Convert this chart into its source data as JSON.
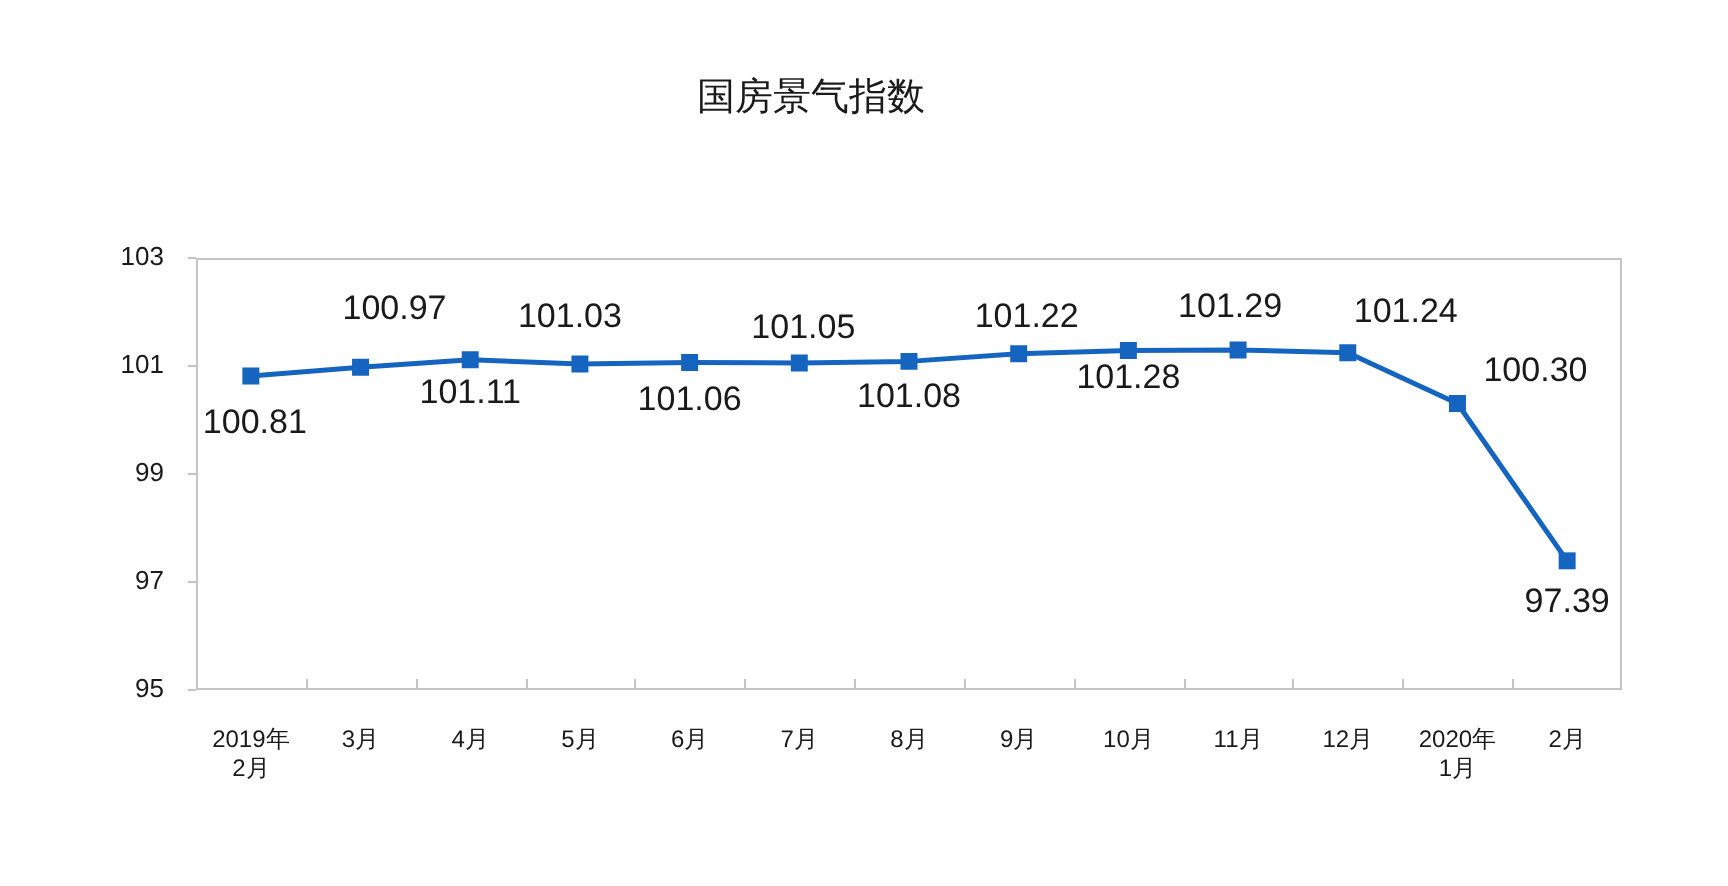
{
  "chart_data": {
    "type": "line",
    "title": "国房景气指数",
    "categories": [
      "2019年\n2月",
      "3月",
      "4月",
      "5月",
      "6月",
      "7月",
      "8月",
      "9月",
      "10月",
      "11月",
      "12月",
      "2020年\n1月",
      "2月"
    ],
    "values": [
      100.81,
      100.97,
      101.11,
      101.03,
      101.06,
      101.05,
      101.08,
      101.22,
      101.28,
      101.29,
      101.24,
      100.3,
      97.39
    ],
    "value_labels": [
      "100.81",
      "100.97",
      "101.11",
      "101.03",
      "101.06",
      "101.05",
      "101.08",
      "101.22",
      "101.28",
      "101.29",
      "101.24",
      "100.30",
      "97.39"
    ],
    "color": "#1565c0",
    "ylim": [
      95,
      103
    ],
    "yticks": [
      95,
      97,
      99,
      101,
      103
    ],
    "grid": false,
    "legend": false,
    "marker": "square",
    "line_style": "solid"
  }
}
